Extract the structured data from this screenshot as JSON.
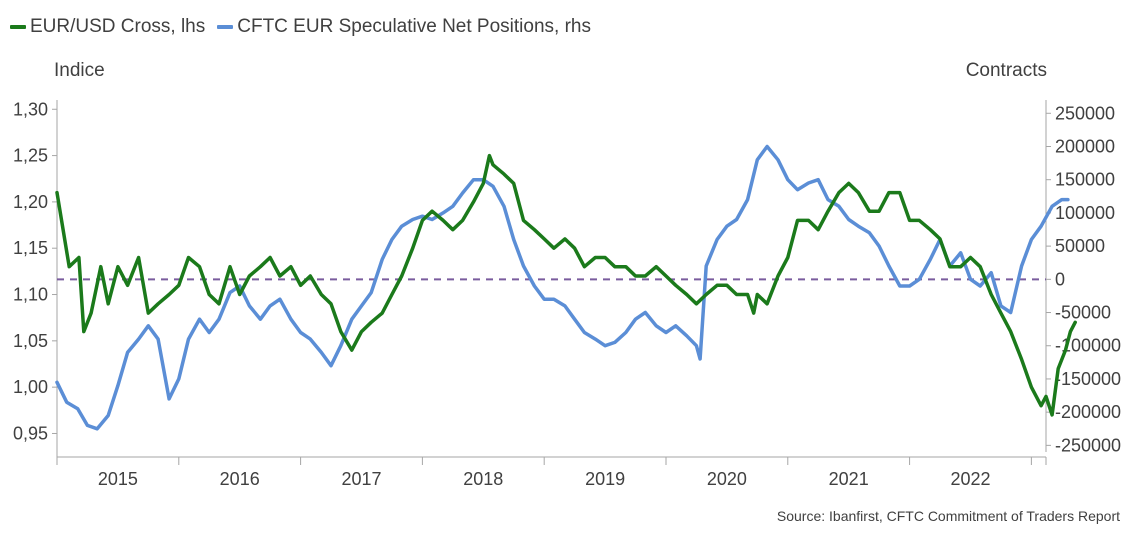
{
  "chart_data": {
    "type": "line",
    "left_axis_title": "Indice",
    "right_axis_title": "Contracts",
    "source": "Source: Ibanfirst, CFTC Commitment of Traders Report",
    "x_tick_labels": [
      "2015",
      "2016",
      "2017",
      "2018",
      "2019",
      "2020",
      "2021",
      "2022"
    ],
    "xlim": [
      2014.5,
      2022.62
    ],
    "y_left": {
      "ylim": [
        0.93,
        1.31
      ],
      "ticks": [
        "1,30",
        "1,25",
        "1,20",
        "1,15",
        "1,10",
        "1,05",
        "1,00",
        "0,95"
      ]
    },
    "y_right": {
      "ylim": [
        -260000,
        270000
      ],
      "ticks": [
        "250000",
        "200000",
        "150000",
        "100000",
        "50000",
        "0",
        "-50000",
        "-100000",
        "-150000",
        "-200000",
        "-250000"
      ]
    },
    "reference_line": {
      "axis": "right",
      "value": 0,
      "style": "dashed",
      "color": "#7a5c9e"
    },
    "grid": false,
    "legend_position": "top-left",
    "series": [
      {
        "name": "EUR/USD Cross, lhs",
        "axis": "left",
        "color": "#1b7a1b",
        "points": [
          [
            2014.5,
            1.21
          ],
          [
            2014.55,
            1.17
          ],
          [
            2014.6,
            1.13
          ],
          [
            2014.68,
            1.14
          ],
          [
            2014.72,
            1.06
          ],
          [
            2014.78,
            1.08
          ],
          [
            2014.86,
            1.13
          ],
          [
            2014.92,
            1.09
          ],
          [
            2015.0,
            1.13
          ],
          [
            2015.08,
            1.11
          ],
          [
            2015.17,
            1.14
          ],
          [
            2015.25,
            1.08
          ],
          [
            2015.33,
            1.09
          ],
          [
            2015.42,
            1.1
          ],
          [
            2015.5,
            1.11
          ],
          [
            2015.58,
            1.14
          ],
          [
            2015.67,
            1.13
          ],
          [
            2015.75,
            1.1
          ],
          [
            2015.83,
            1.09
          ],
          [
            2015.92,
            1.13
          ],
          [
            2016.0,
            1.1
          ],
          [
            2016.08,
            1.12
          ],
          [
            2016.17,
            1.13
          ],
          [
            2016.25,
            1.14
          ],
          [
            2016.33,
            1.12
          ],
          [
            2016.42,
            1.13
          ],
          [
            2016.5,
            1.11
          ],
          [
            2016.58,
            1.12
          ],
          [
            2016.67,
            1.1
          ],
          [
            2016.75,
            1.09
          ],
          [
            2016.83,
            1.06
          ],
          [
            2016.92,
            1.04
          ],
          [
            2017.0,
            1.06
          ],
          [
            2017.08,
            1.07
          ],
          [
            2017.17,
            1.08
          ],
          [
            2017.25,
            1.1
          ],
          [
            2017.33,
            1.12
          ],
          [
            2017.42,
            1.15
          ],
          [
            2017.5,
            1.18
          ],
          [
            2017.58,
            1.19
          ],
          [
            2017.67,
            1.18
          ],
          [
            2017.75,
            1.17
          ],
          [
            2017.83,
            1.18
          ],
          [
            2017.92,
            1.2
          ],
          [
            2018.0,
            1.22
          ],
          [
            2018.05,
            1.25
          ],
          [
            2018.08,
            1.24
          ],
          [
            2018.17,
            1.23
          ],
          [
            2018.25,
            1.22
          ],
          [
            2018.33,
            1.18
          ],
          [
            2018.42,
            1.17
          ],
          [
            2018.5,
            1.16
          ],
          [
            2018.58,
            1.15
          ],
          [
            2018.67,
            1.16
          ],
          [
            2018.75,
            1.15
          ],
          [
            2018.83,
            1.13
          ],
          [
            2018.92,
            1.14
          ],
          [
            2019.0,
            1.14
          ],
          [
            2019.08,
            1.13
          ],
          [
            2019.17,
            1.13
          ],
          [
            2019.25,
            1.12
          ],
          [
            2019.33,
            1.12
          ],
          [
            2019.42,
            1.13
          ],
          [
            2019.5,
            1.12
          ],
          [
            2019.58,
            1.11
          ],
          [
            2019.67,
            1.1
          ],
          [
            2019.75,
            1.09
          ],
          [
            2019.83,
            1.1
          ],
          [
            2019.92,
            1.11
          ],
          [
            2020.0,
            1.11
          ],
          [
            2020.08,
            1.1
          ],
          [
            2020.17,
            1.1
          ],
          [
            2020.22,
            1.08
          ],
          [
            2020.25,
            1.1
          ],
          [
            2020.33,
            1.09
          ],
          [
            2020.42,
            1.12
          ],
          [
            2020.5,
            1.14
          ],
          [
            2020.58,
            1.18
          ],
          [
            2020.67,
            1.18
          ],
          [
            2020.75,
            1.17
          ],
          [
            2020.83,
            1.19
          ],
          [
            2020.92,
            1.21
          ],
          [
            2021.0,
            1.22
          ],
          [
            2021.08,
            1.21
          ],
          [
            2021.17,
            1.19
          ],
          [
            2021.25,
            1.19
          ],
          [
            2021.33,
            1.21
          ],
          [
            2021.42,
            1.21
          ],
          [
            2021.5,
            1.18
          ],
          [
            2021.58,
            1.18
          ],
          [
            2021.67,
            1.17
          ],
          [
            2021.75,
            1.16
          ],
          [
            2021.83,
            1.13
          ],
          [
            2021.92,
            1.13
          ],
          [
            2022.0,
            1.14
          ],
          [
            2022.08,
            1.13
          ],
          [
            2022.17,
            1.1
          ],
          [
            2022.25,
            1.08
          ],
          [
            2022.33,
            1.06
          ],
          [
            2022.42,
            1.03
          ],
          [
            2022.5,
            1.0
          ],
          [
            2022.58,
            0.98
          ],
          [
            2022.62,
            0.99
          ],
          [
            2022.67,
            0.97
          ],
          [
            2022.72,
            1.02
          ],
          [
            2022.78,
            1.04
          ],
          [
            2022.82,
            1.06
          ],
          [
            2022.86,
            1.07
          ]
        ]
      },
      {
        "name": "CFTC EUR Speculative Net Positions, rhs",
        "axis": "right",
        "color": "#5b8ed6",
        "points": [
          [
            2014.5,
            -155000
          ],
          [
            2014.58,
            -185000
          ],
          [
            2014.67,
            -195000
          ],
          [
            2014.75,
            -220000
          ],
          [
            2014.83,
            -225000
          ],
          [
            2014.92,
            -205000
          ],
          [
            2015.0,
            -160000
          ],
          [
            2015.08,
            -110000
          ],
          [
            2015.17,
            -90000
          ],
          [
            2015.25,
            -70000
          ],
          [
            2015.33,
            -90000
          ],
          [
            2015.42,
            -180000
          ],
          [
            2015.5,
            -150000
          ],
          [
            2015.58,
            -90000
          ],
          [
            2015.67,
            -60000
          ],
          [
            2015.75,
            -80000
          ],
          [
            2015.83,
            -60000
          ],
          [
            2015.92,
            -20000
          ],
          [
            2016.0,
            -10000
          ],
          [
            2016.08,
            -40000
          ],
          [
            2016.17,
            -60000
          ],
          [
            2016.25,
            -40000
          ],
          [
            2016.33,
            -30000
          ],
          [
            2016.42,
            -60000
          ],
          [
            2016.5,
            -80000
          ],
          [
            2016.58,
            -90000
          ],
          [
            2016.67,
            -110000
          ],
          [
            2016.75,
            -130000
          ],
          [
            2016.83,
            -100000
          ],
          [
            2016.92,
            -60000
          ],
          [
            2017.0,
            -40000
          ],
          [
            2017.08,
            -20000
          ],
          [
            2017.17,
            30000
          ],
          [
            2017.25,
            60000
          ],
          [
            2017.33,
            80000
          ],
          [
            2017.42,
            90000
          ],
          [
            2017.5,
            95000
          ],
          [
            2017.58,
            90000
          ],
          [
            2017.67,
            100000
          ],
          [
            2017.75,
            110000
          ],
          [
            2017.83,
            130000
          ],
          [
            2017.92,
            150000
          ],
          [
            2018.0,
            150000
          ],
          [
            2018.08,
            140000
          ],
          [
            2018.17,
            110000
          ],
          [
            2018.25,
            60000
          ],
          [
            2018.33,
            20000
          ],
          [
            2018.42,
            -10000
          ],
          [
            2018.5,
            -30000
          ],
          [
            2018.58,
            -30000
          ],
          [
            2018.67,
            -40000
          ],
          [
            2018.75,
            -60000
          ],
          [
            2018.83,
            -80000
          ],
          [
            2018.92,
            -90000
          ],
          [
            2019.0,
            -100000
          ],
          [
            2019.08,
            -95000
          ],
          [
            2019.17,
            -80000
          ],
          [
            2019.25,
            -60000
          ],
          [
            2019.33,
            -50000
          ],
          [
            2019.42,
            -70000
          ],
          [
            2019.5,
            -80000
          ],
          [
            2019.58,
            -70000
          ],
          [
            2019.67,
            -85000
          ],
          [
            2019.75,
            -100000
          ],
          [
            2019.78,
            -120000
          ],
          [
            2019.83,
            20000
          ],
          [
            2019.92,
            60000
          ],
          [
            2020.0,
            80000
          ],
          [
            2020.08,
            90000
          ],
          [
            2020.17,
            120000
          ],
          [
            2020.25,
            180000
          ],
          [
            2020.33,
            200000
          ],
          [
            2020.42,
            180000
          ],
          [
            2020.5,
            150000
          ],
          [
            2020.58,
            135000
          ],
          [
            2020.67,
            145000
          ],
          [
            2020.75,
            150000
          ],
          [
            2020.83,
            120000
          ],
          [
            2020.92,
            110000
          ],
          [
            2021.0,
            90000
          ],
          [
            2021.08,
            80000
          ],
          [
            2021.17,
            70000
          ],
          [
            2021.25,
            50000
          ],
          [
            2021.33,
            20000
          ],
          [
            2021.42,
            -10000
          ],
          [
            2021.5,
            -10000
          ],
          [
            2021.58,
            0
          ],
          [
            2021.67,
            30000
          ],
          [
            2021.75,
            60000
          ],
          [
            2021.83,
            20000
          ],
          [
            2021.92,
            40000
          ],
          [
            2022.0,
            0
          ],
          [
            2022.08,
            -10000
          ],
          [
            2022.17,
            10000
          ],
          [
            2022.25,
            -40000
          ],
          [
            2022.33,
            -50000
          ],
          [
            2022.42,
            20000
          ],
          [
            2022.5,
            60000
          ],
          [
            2022.58,
            80000
          ],
          [
            2022.67,
            110000
          ],
          [
            2022.75,
            120000
          ],
          [
            2022.8,
            120000
          ]
        ]
      }
    ]
  }
}
